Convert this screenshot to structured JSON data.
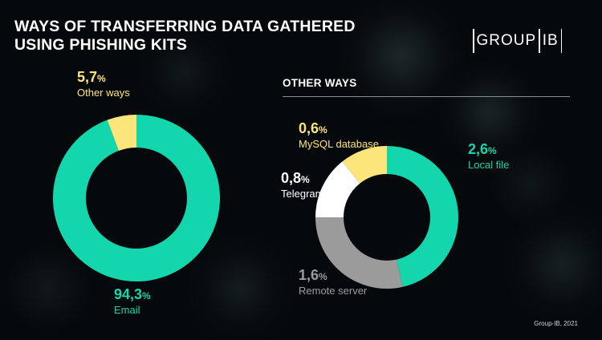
{
  "title_line1": "WAYS OF TRANSFERRING DATA GATHERED",
  "title_line2": "USING PHISHING KITS",
  "logo_left": "GROUP",
  "logo_right": "IB",
  "footer": "Group-IB, 2021",
  "colors": {
    "teal": "#13d6ac",
    "yellow": "#fce57b",
    "white": "#ffffff",
    "gray": "#9b9b9b"
  },
  "chart_data": [
    {
      "type": "pie",
      "variant": "donut",
      "categories": [
        "Email",
        "Other ways"
      ],
      "values": [
        94.3,
        5.7
      ],
      "value_labels": [
        "94,3%",
        "5,7%"
      ]
    },
    {
      "type": "pie",
      "variant": "donut",
      "title": "OTHER WAYS",
      "categories": [
        "Local file",
        "Remote server",
        "Telegram",
        "MySQL database"
      ],
      "values": [
        2.6,
        1.6,
        0.8,
        0.6
      ],
      "value_labels": [
        "2,6%",
        "1,6%",
        "0,8%",
        "0,6%"
      ]
    }
  ]
}
